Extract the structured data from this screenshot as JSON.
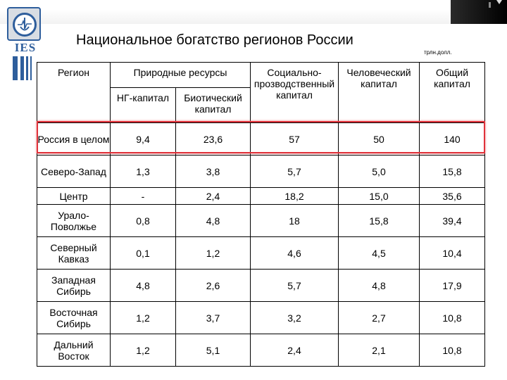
{
  "logo": {
    "text": "IES"
  },
  "title": "Национальное богатство регионов России",
  "unit": "трлн.долл.",
  "table": {
    "headers": {
      "region": "Регион",
      "natural": "Природные ресурсы",
      "ng": "НГ-капитал",
      "bio": "Биотический капитал",
      "social": "Социально-прозводственный капитал",
      "human": "Человеческий капитал",
      "total": "Общий капитал"
    },
    "rows": [
      {
        "region": "Россия в целом",
        "ng": "9,4",
        "bio": "23,6",
        "social": "57",
        "human": "50",
        "total": "140"
      },
      {
        "region": "Северо-Запад",
        "ng": "1,3",
        "bio": "3,8",
        "social": "5,7",
        "human": "5,0",
        "total": "15,8"
      },
      {
        "region": "Центр",
        "ng": "-",
        "bio": "2,4",
        "social": "18,2",
        "human": "15,0",
        "total": "35,6"
      },
      {
        "region": "Урало-Поволжье",
        "ng": "0,8",
        "bio": "4,8",
        "social": "18",
        "human": "15,8",
        "total": "39,4"
      },
      {
        "region": "Северный Кавказ",
        "ng": "0,1",
        "bio": "1,2",
        "social": "4,6",
        "human": "4,5",
        "total": "10,4"
      },
      {
        "region": "Западная Сибирь",
        "ng": "4,8",
        "bio": "2,6",
        "social": "5,7",
        "human": "4,8",
        "total": "17,9"
      },
      {
        "region": "Восточная Сибирь",
        "ng": "1,2",
        "bio": "3,7",
        "social": "3,2",
        "human": "2,7",
        "total": "10,8"
      },
      {
        "region": "Дальний Восток",
        "ng": "1,2",
        "bio": "5,1",
        "social": "2,4",
        "human": "2,1",
        "total": "10,8"
      }
    ],
    "highlight_color": "#e0323a"
  }
}
